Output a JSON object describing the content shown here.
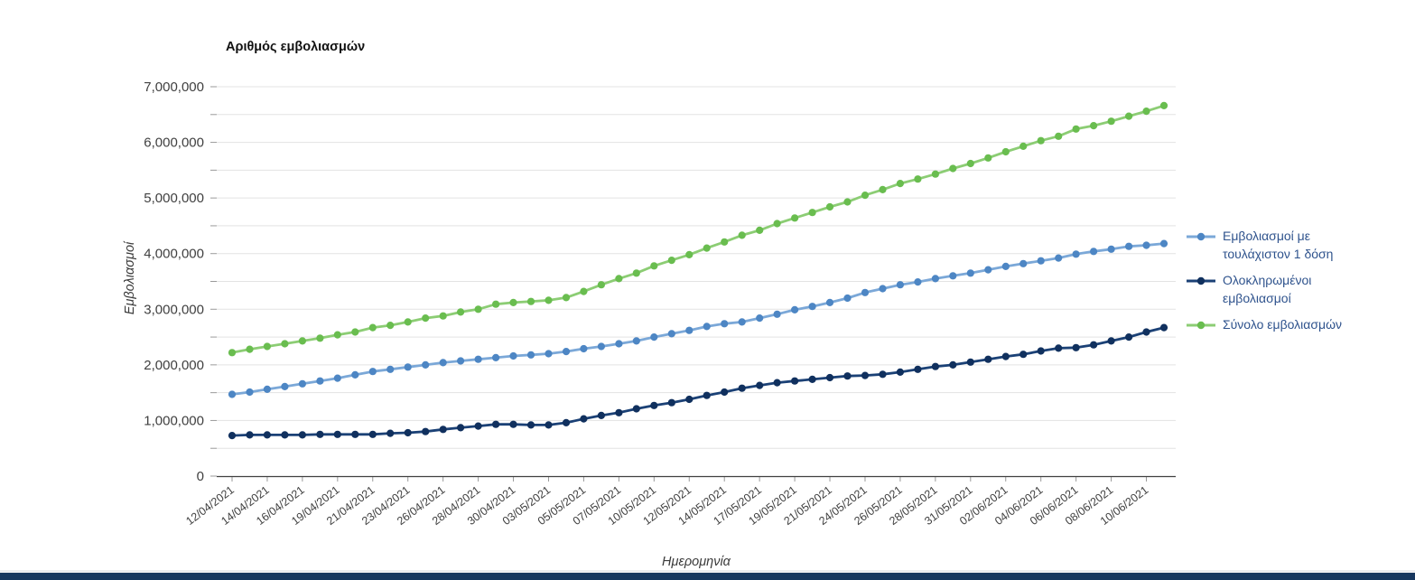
{
  "title": "Αριθμός εμβολιασμών",
  "y_axis_title": "Εμβολιασμοί",
  "x_axis_title": "Ημερομηνία",
  "y_tick_labels": [
    "0",
    "1,000,000",
    "2,000,000",
    "3,000,000",
    "4,000,000",
    "5,000,000",
    "6,000,000",
    "7,000,000"
  ],
  "accent_bar_color": "#17375E",
  "axis_label_color": "#404040",
  "gridline_color": "#E3E3E3",
  "legend_text_color": "#2F538D",
  "chart_data": {
    "type": "line",
    "title": "Αριθμός εμβολιασμών",
    "xlabel": "Ημερομηνία",
    "ylabel": "Εμβολιασμοί",
    "ylim": [
      0,
      7000000
    ],
    "y_label_step": 1000000,
    "y_grid_step": 500000,
    "grid": true,
    "legend_position": "right",
    "x_tick_labels": [
      "12/04/2021",
      "14/04/2021",
      "16/04/2021",
      "19/04/2021",
      "21/04/2021",
      "23/04/2021",
      "26/04/2021",
      "28/04/2021",
      "30/04/2021",
      "03/05/2021",
      "05/05/2021",
      "07/05/2021",
      "10/05/2021",
      "12/05/2021",
      "14/05/2021",
      "17/05/2021",
      "19/05/2021",
      "21/05/2021",
      "24/05/2021",
      "26/05/2021",
      "28/05/2021",
      "31/05/2021",
      "02/06/2021",
      "04/06/2021",
      "06/06/2021",
      "08/06/2021",
      "10/06/2021"
    ],
    "points_per_label": 2,
    "series": [
      {
        "name": "Εμβολιασμοί με τουλάχιστον 1 δόση",
        "line_color": "#7BA8D8",
        "dot_color": "#4D86C4",
        "values": [
          1470000,
          1510000,
          1560000,
          1610000,
          1660000,
          1710000,
          1760000,
          1820000,
          1880000,
          1920000,
          1960000,
          2000000,
          2040000,
          2070000,
          2100000,
          2130000,
          2160000,
          2180000,
          2200000,
          2240000,
          2290000,
          2330000,
          2380000,
          2430000,
          2500000,
          2560000,
          2620000,
          2690000,
          2740000,
          2770000,
          2840000,
          2910000,
          2990000,
          3050000,
          3120000,
          3200000,
          3300000,
          3370000,
          3440000,
          3490000,
          3550000,
          3600000,
          3650000,
          3710000,
          3770000,
          3820000,
          3870000,
          3920000,
          3990000,
          4040000,
          4080000,
          4130000,
          4150000,
          4180000
        ]
      },
      {
        "name": "Ολοκληρωμένοι εμβολιασμοί",
        "line_color": "#1B4176",
        "dot_color": "#10305E",
        "values": [
          730000,
          740000,
          740000,
          740000,
          740000,
          750000,
          750000,
          750000,
          750000,
          770000,
          780000,
          800000,
          840000,
          870000,
          900000,
          930000,
          930000,
          920000,
          920000,
          960000,
          1030000,
          1090000,
          1140000,
          1210000,
          1270000,
          1320000,
          1380000,
          1450000,
          1510000,
          1580000,
          1630000,
          1680000,
          1710000,
          1740000,
          1770000,
          1800000,
          1810000,
          1830000,
          1870000,
          1920000,
          1970000,
          2000000,
          2050000,
          2100000,
          2150000,
          2190000,
          2250000,
          2300000,
          2310000,
          2360000,
          2430000,
          2500000,
          2590000,
          2670000
        ]
      },
      {
        "name": "Σύνολο εμβολιασμών",
        "line_color": "#8CCD74",
        "dot_color": "#69BD4F",
        "values": [
          2220000,
          2280000,
          2330000,
          2380000,
          2430000,
          2480000,
          2540000,
          2590000,
          2670000,
          2710000,
          2770000,
          2840000,
          2880000,
          2950000,
          3000000,
          3090000,
          3120000,
          3140000,
          3160000,
          3210000,
          3320000,
          3440000,
          3550000,
          3650000,
          3780000,
          3880000,
          3980000,
          4100000,
          4210000,
          4330000,
          4420000,
          4540000,
          4640000,
          4740000,
          4840000,
          4930000,
          5050000,
          5150000,
          5260000,
          5340000,
          5430000,
          5530000,
          5620000,
          5720000,
          5830000,
          5930000,
          6030000,
          6110000,
          6240000,
          6300000,
          6380000,
          6470000,
          6560000,
          6660000
        ]
      }
    ]
  }
}
